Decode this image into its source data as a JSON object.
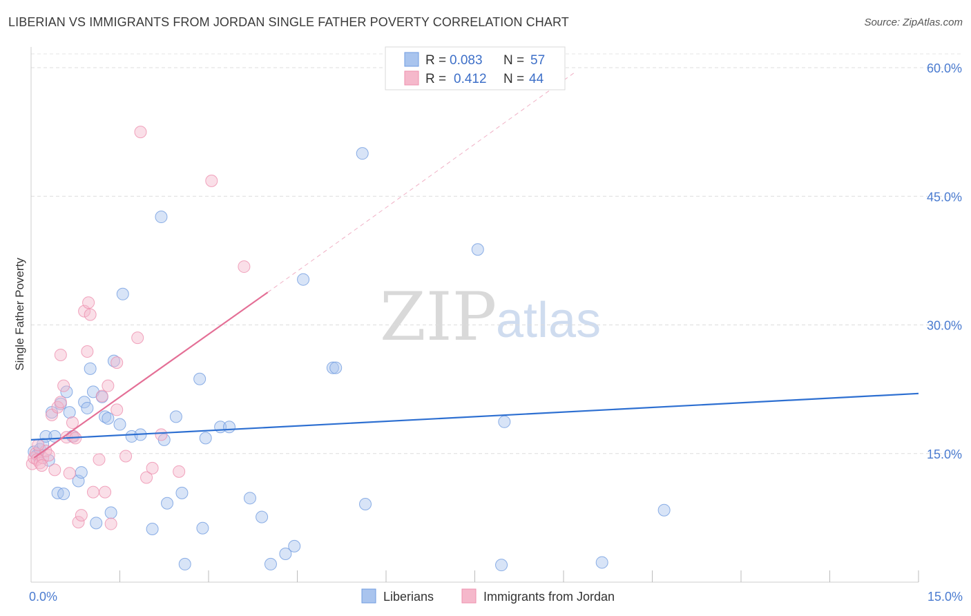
{
  "header": {
    "title": "LIBERIAN VS IMMIGRANTS FROM JORDAN SINGLE FATHER POVERTY CORRELATION CHART",
    "source": "Source: ZipAtlas.com"
  },
  "watermark": {
    "zip": "ZIP",
    "atlas": "atlas"
  },
  "legend": {
    "rows": [
      {
        "r_label": "R =",
        "r_value": "0.083",
        "n_label": "N =",
        "n_value": "57",
        "color": "#a9c4ee"
      },
      {
        "r_label": "R =",
        "r_value": "0.412",
        "n_label": "N =",
        "n_value": "44",
        "color": "#f5b8cb"
      }
    ]
  },
  "bottom_legend": {
    "items": [
      {
        "label": "Liberians",
        "color": "#a9c4ee"
      },
      {
        "label": "Immigrants from Jordan",
        "color": "#f5b8cb"
      }
    ]
  },
  "chart_data": {
    "type": "scatter",
    "ylabel": "Single Father Poverty",
    "xlim": [
      0,
      15
    ],
    "ylim": [
      0,
      60
    ],
    "y_ticks": [
      {
        "value": 15,
        "label": "15.0%"
      },
      {
        "value": 30,
        "label": "30.0%"
      },
      {
        "value": 45,
        "label": "45.0%"
      },
      {
        "value": 60,
        "label": "60.0%"
      }
    ],
    "x_tick_labels": [
      {
        "value": 0,
        "label": "0.0%"
      },
      {
        "value": 15,
        "label": "15.0%"
      }
    ],
    "x_minor_ticks": [
      1.5,
      3.0,
      4.5,
      6.0,
      7.5,
      9.0,
      10.5,
      12.0,
      13.5
    ],
    "grid": true,
    "series": [
      {
        "name": "Liberians",
        "color": "#a9c4ee",
        "stroke": "#6f9be0",
        "trend": {
          "x": [
            0,
            15
          ],
          "y": [
            16.6,
            22.0
          ],
          "color": "#2d6fd1"
        },
        "points": [
          [
            0.05,
            15.2
          ],
          [
            0.1,
            14.8
          ],
          [
            0.15,
            15.5
          ],
          [
            0.2,
            16.1
          ],
          [
            0.25,
            17.0
          ],
          [
            0.3,
            14.2
          ],
          [
            0.35,
            19.8
          ],
          [
            0.4,
            17.0
          ],
          [
            0.45,
            10.4
          ],
          [
            0.5,
            20.8
          ],
          [
            0.55,
            10.3
          ],
          [
            0.6,
            22.2
          ],
          [
            0.65,
            19.8
          ],
          [
            0.7,
            17.0
          ],
          [
            0.8,
            11.8
          ],
          [
            0.85,
            12.8
          ],
          [
            0.9,
            21.0
          ],
          [
            0.95,
            20.3
          ],
          [
            1.0,
            24.9
          ],
          [
            1.05,
            22.2
          ],
          [
            1.1,
            6.9
          ],
          [
            1.2,
            21.6
          ],
          [
            1.25,
            19.3
          ],
          [
            1.3,
            19.1
          ],
          [
            1.35,
            8.1
          ],
          [
            1.4,
            25.8
          ],
          [
            1.5,
            18.4
          ],
          [
            1.55,
            33.6
          ],
          [
            1.7,
            17.0
          ],
          [
            1.85,
            17.2
          ],
          [
            2.05,
            6.2
          ],
          [
            2.2,
            42.6
          ],
          [
            2.25,
            16.6
          ],
          [
            2.3,
            9.2
          ],
          [
            2.45,
            19.3
          ],
          [
            2.55,
            10.4
          ],
          [
            2.6,
            2.1
          ],
          [
            2.85,
            23.7
          ],
          [
            2.9,
            6.3
          ],
          [
            2.95,
            16.8
          ],
          [
            3.2,
            18.1
          ],
          [
            3.35,
            18.1
          ],
          [
            3.7,
            9.8
          ],
          [
            3.9,
            7.6
          ],
          [
            4.05,
            2.1
          ],
          [
            4.3,
            3.3
          ],
          [
            4.45,
            4.2
          ],
          [
            4.6,
            35.3
          ],
          [
            5.1,
            25.0
          ],
          [
            5.15,
            25.0
          ],
          [
            5.6,
            50.0
          ],
          [
            5.65,
            9.1
          ],
          [
            7.55,
            38.8
          ],
          [
            7.95,
            2.0
          ],
          [
            8.0,
            18.7
          ],
          [
            9.65,
            2.3
          ],
          [
            10.7,
            8.4
          ]
        ]
      },
      {
        "name": "Immigrants from Jordan",
        "color": "#f5b8cb",
        "stroke": "#ee8fae",
        "trend": {
          "x": [
            0.05,
            4.0
          ],
          "y": [
            14.5,
            33.8
          ],
          "color": "#e46f96",
          "dash_to": [
            9.2,
            59.5
          ]
        },
        "points": [
          [
            0.02,
            13.8
          ],
          [
            0.05,
            14.5
          ],
          [
            0.08,
            15.0
          ],
          [
            0.1,
            14.3
          ],
          [
            0.15,
            13.9
          ],
          [
            0.2,
            14.5
          ],
          [
            0.25,
            15.3
          ],
          [
            0.3,
            14.8
          ],
          [
            0.35,
            19.5
          ],
          [
            0.4,
            13.1
          ],
          [
            0.45,
            20.4
          ],
          [
            0.5,
            21.0
          ],
          [
            0.5,
            26.5
          ],
          [
            0.55,
            22.9
          ],
          [
            0.6,
            16.9
          ],
          [
            0.65,
            12.7
          ],
          [
            0.7,
            18.6
          ],
          [
            0.72,
            17.0
          ],
          [
            0.75,
            16.8
          ],
          [
            0.8,
            7.0
          ],
          [
            0.85,
            7.8
          ],
          [
            0.9,
            31.6
          ],
          [
            0.95,
            26.9
          ],
          [
            0.97,
            32.6
          ],
          [
            1.0,
            31.2
          ],
          [
            1.05,
            10.5
          ],
          [
            1.15,
            14.3
          ],
          [
            1.2,
            21.7
          ],
          [
            1.25,
            10.5
          ],
          [
            1.3,
            22.9
          ],
          [
            1.35,
            6.8
          ],
          [
            1.45,
            20.1
          ],
          [
            1.45,
            25.6
          ],
          [
            1.6,
            14.7
          ],
          [
            1.8,
            28.5
          ],
          [
            1.85,
            52.5
          ],
          [
            1.95,
            12.2
          ],
          [
            2.05,
            13.3
          ],
          [
            2.2,
            17.2
          ],
          [
            2.5,
            12.9
          ],
          [
            3.05,
            46.8
          ],
          [
            3.6,
            36.8
          ],
          [
            0.12,
            16.0
          ],
          [
            0.18,
            13.6
          ]
        ]
      }
    ]
  }
}
